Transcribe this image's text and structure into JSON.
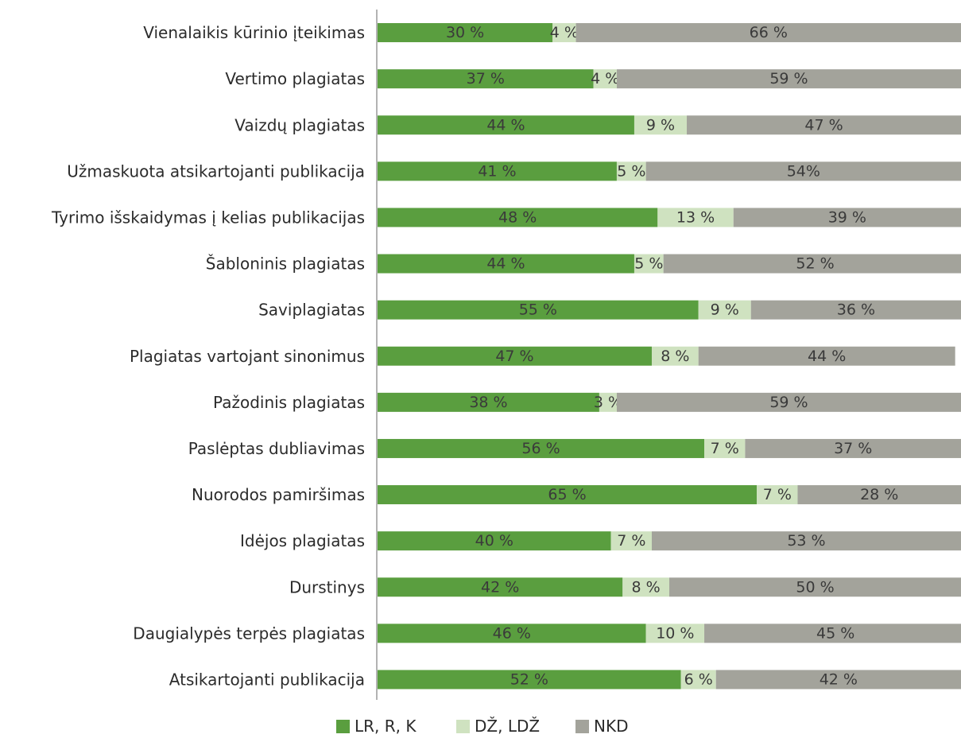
{
  "chart_data": {
    "type": "bar",
    "orientation": "horizontal",
    "stacked": true,
    "normalized_percent": true,
    "categories": [
      "Vienalaikis kūrinio įteikimas",
      "Vertimo plagiatas",
      "Vaizdų plagiatas",
      "Užmaskuota atsikartojanti publikacija",
      "Tyrimo išskaidymas į kelias publikacijas",
      "Šabloninis plagiatas",
      "Saviplagiatas",
      "Plagiatas vartojant sinonimus",
      "Pažodinis plagiatas",
      "Paslėptas dubliavimas",
      "Nuorodos pamiršimas",
      "Idėjos plagiatas",
      "Durstinys",
      "Daugialypės terpės plagiatas",
      "Atsikartojanti publikacija"
    ],
    "series": [
      {
        "name": "LR, R, K",
        "color": "#5a9e3f",
        "values": [
          30,
          37,
          44,
          41,
          48,
          44,
          55,
          47,
          38,
          56,
          65,
          40,
          42,
          46,
          52
        ],
        "labels": [
          "30 %",
          "37 %",
          "44 %",
          "41 %",
          "48 %",
          "44 %",
          "55 %",
          "47 %",
          "38 %",
          "56 %",
          "65 %",
          "40 %",
          "42 %",
          "46 %",
          "52 %"
        ]
      },
      {
        "name": "DŽ, LDŽ",
        "color": "#cfe2c0",
        "values": [
          4,
          4,
          9,
          5,
          13,
          5,
          9,
          8,
          3,
          7,
          7,
          7,
          8,
          10,
          6
        ],
        "labels": [
          "4 %",
          "4 %",
          "9 %",
          "5 %",
          "13 %",
          "5 %",
          "9 %",
          "8 %",
          "3 %",
          "7 %",
          "7 %",
          "7 %",
          "8 %",
          "10 %",
          "6 %"
        ]
      },
      {
        "name": "NKD",
        "color": "#a3a39b",
        "values": [
          66,
          59,
          47,
          54,
          39,
          52,
          36,
          44,
          59,
          37,
          28,
          53,
          50,
          45,
          42
        ],
        "labels": [
          "66 %",
          "59 %",
          "47 %",
          "54%",
          "39 %",
          "52 %",
          "36 %",
          "44 %",
          "59 %",
          "37 %",
          "28 %",
          "53 %",
          "50 %",
          "45 %",
          "42 %"
        ]
      }
    ],
    "xlim": [
      0,
      100
    ],
    "grid": false,
    "legend_position": "bottom"
  }
}
